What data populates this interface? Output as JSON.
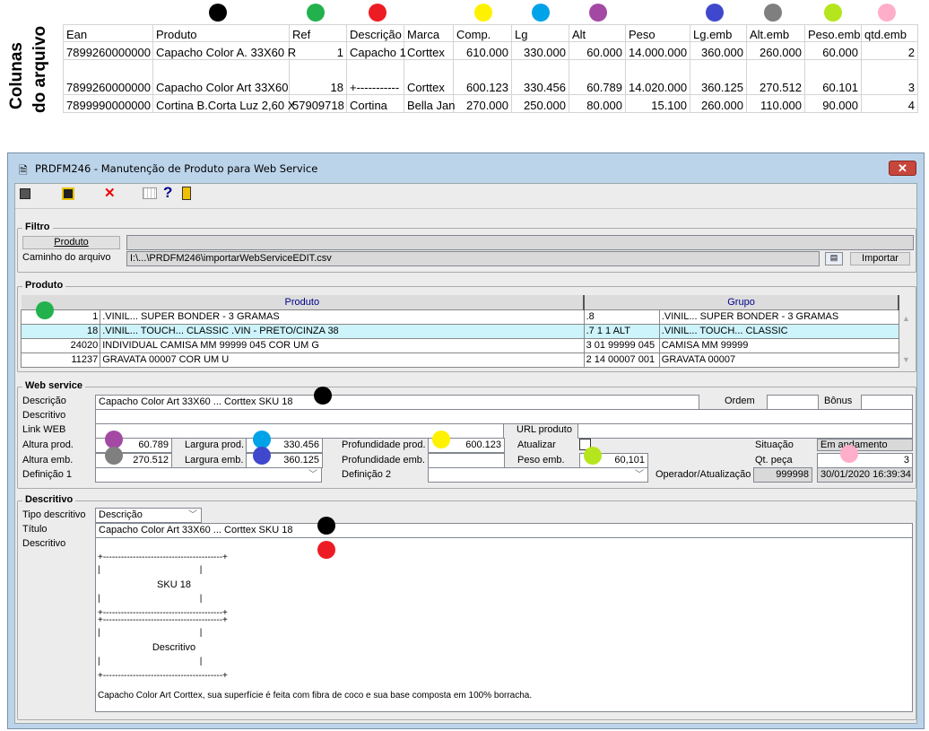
{
  "side_label": [
    "Colunas",
    "do arquivo"
  ],
  "colors": {
    "black": "#000000",
    "green": "#22b14c",
    "red": "#ed1c24",
    "yellow": "#fff200",
    "cyan": "#00a2e8",
    "purple": "#a349a4",
    "blue": "#3f48cc",
    "grey": "#7f7f7f",
    "lime": "#b5e61d",
    "pink": "#ffaec9"
  },
  "sheet": {
    "headers": [
      "Ean",
      "Produto",
      "Ref",
      "Descrição",
      "Marca",
      "Comp.",
      "Lg",
      "Alt",
      "Peso",
      "Lg.emb",
      "Alt.emb",
      "Peso.emb",
      "qtd.emb"
    ],
    "rows": [
      [
        "7899260000000",
        "Capacho Color A. 33X60 R",
        "1",
        "Capacho 1",
        "Corttex",
        "610.000",
        "330.000",
        "60.000",
        "14.000.000",
        "360.000",
        "260.000",
        "60.000",
        "2"
      ],
      [
        "7899260000000",
        "Capacho Color Art 33X60",
        "18",
        "+-----------",
        "Corttex",
        "600.123",
        "330.456",
        "60.789",
        "14.020.000",
        "360.125",
        "270.512",
        "60.101",
        "3"
      ],
      [
        "7899990000000",
        "Cortina B.Corta Luz 2,60 X",
        "57909718",
        "Cortina",
        "Bella Jan",
        "270.000",
        "250.000",
        "80.000",
        "15.100",
        "260.000",
        "110.000",
        "90.000",
        "4"
      ]
    ]
  },
  "window": {
    "title": "PRDFM246 - Manutenção de Produto para Web Service",
    "close": "✕"
  },
  "filtro": {
    "legend": "Filtro",
    "produto_btn": "Produto",
    "caminho_label": "Caminho do arquivo",
    "caminho_value": "I:\\...\\PRDFM246\\importarWebServiceEDIT.csv",
    "importar": "Importar"
  },
  "produto": {
    "legend": "Produto",
    "col_produto": "Produto",
    "col_grupo": "Grupo",
    "rows": [
      [
        "1",
        ".VINIL... SUPER BONDER - 3 GRAMAS",
        ".8",
        ".VINIL... SUPER BONDER - 3 GRAMAS"
      ],
      [
        "18",
        ".VINIL... TOUCH... CLASSIC .VIN - PRETO/CINZA 38",
        ".7 1 1 ALT",
        ".VINIL... TOUCH... CLASSIC"
      ],
      [
        "24020",
        "INDIVIDUAL CAMISA MM 99999 045 COR UM G",
        "3 01 99999 045",
        "CAMISA MM 99999"
      ],
      [
        "11237",
        "GRAVATA 00007 COR UM U",
        "2 14 00007 001",
        "GRAVATA 00007"
      ]
    ]
  },
  "ws": {
    "legend": "Web service",
    "descricao_label": "Descrição",
    "descricao": "Capacho Color Art 33X60 ... Corttex SKU 18",
    "ordem": "Ordem",
    "bonus": "Bônus",
    "descritivo_label": "Descritivo",
    "link_label": "Link WEB",
    "url_label": "URL produto",
    "altura_prod_label": "Altura prod.",
    "altura_prod": "60.789",
    "largura_prod_label": "Largura prod.",
    "largura_prod": "330.456",
    "prof_prod_label": "Profundidade prod.",
    "prof_prod": "600.123",
    "atualizar_label": "Atualizar",
    "situacao_label": "Situação",
    "situacao": "Em andamento",
    "altura_emb_label": "Altura emb.",
    "altura_emb": "270.512",
    "largura_emb_label": "Largura emb.",
    "largura_emb": "360.125",
    "prof_emb_label": "Profundidade emb.",
    "peso_emb_label": "Peso emb.",
    "peso_emb": "60,101",
    "qt_peca_label": "Qt. peça",
    "qt_peca": "3",
    "def1_label": "Definição 1",
    "def2_label": "Definição 2",
    "operador_label": "Operador/Atualização",
    "operador": "999998",
    "data": "30/01/2020 16:39:34"
  },
  "desc": {
    "legend": "Descritivo",
    "tipo_label": "Tipo descritivo",
    "tipo": "Descrição",
    "titulo_label": "Título",
    "titulo": "Capacho Color Art 33X60 ... Corttex SKU 18",
    "descritivo_label": "Descritivo",
    "lines": [
      "+----------------------------------------+",
      "|                                        |",
      "SKU 18",
      "|                                        |",
      "+----------------------------------------+",
      "+----------------------------------------+",
      "|                                        |",
      "Descritivo",
      "|                                        |",
      "+----------------------------------------+"
    ],
    "body": "Capacho Color Art Corttex, sua superfície é feita com fibra de coco e sua base composta em 100% borracha."
  }
}
